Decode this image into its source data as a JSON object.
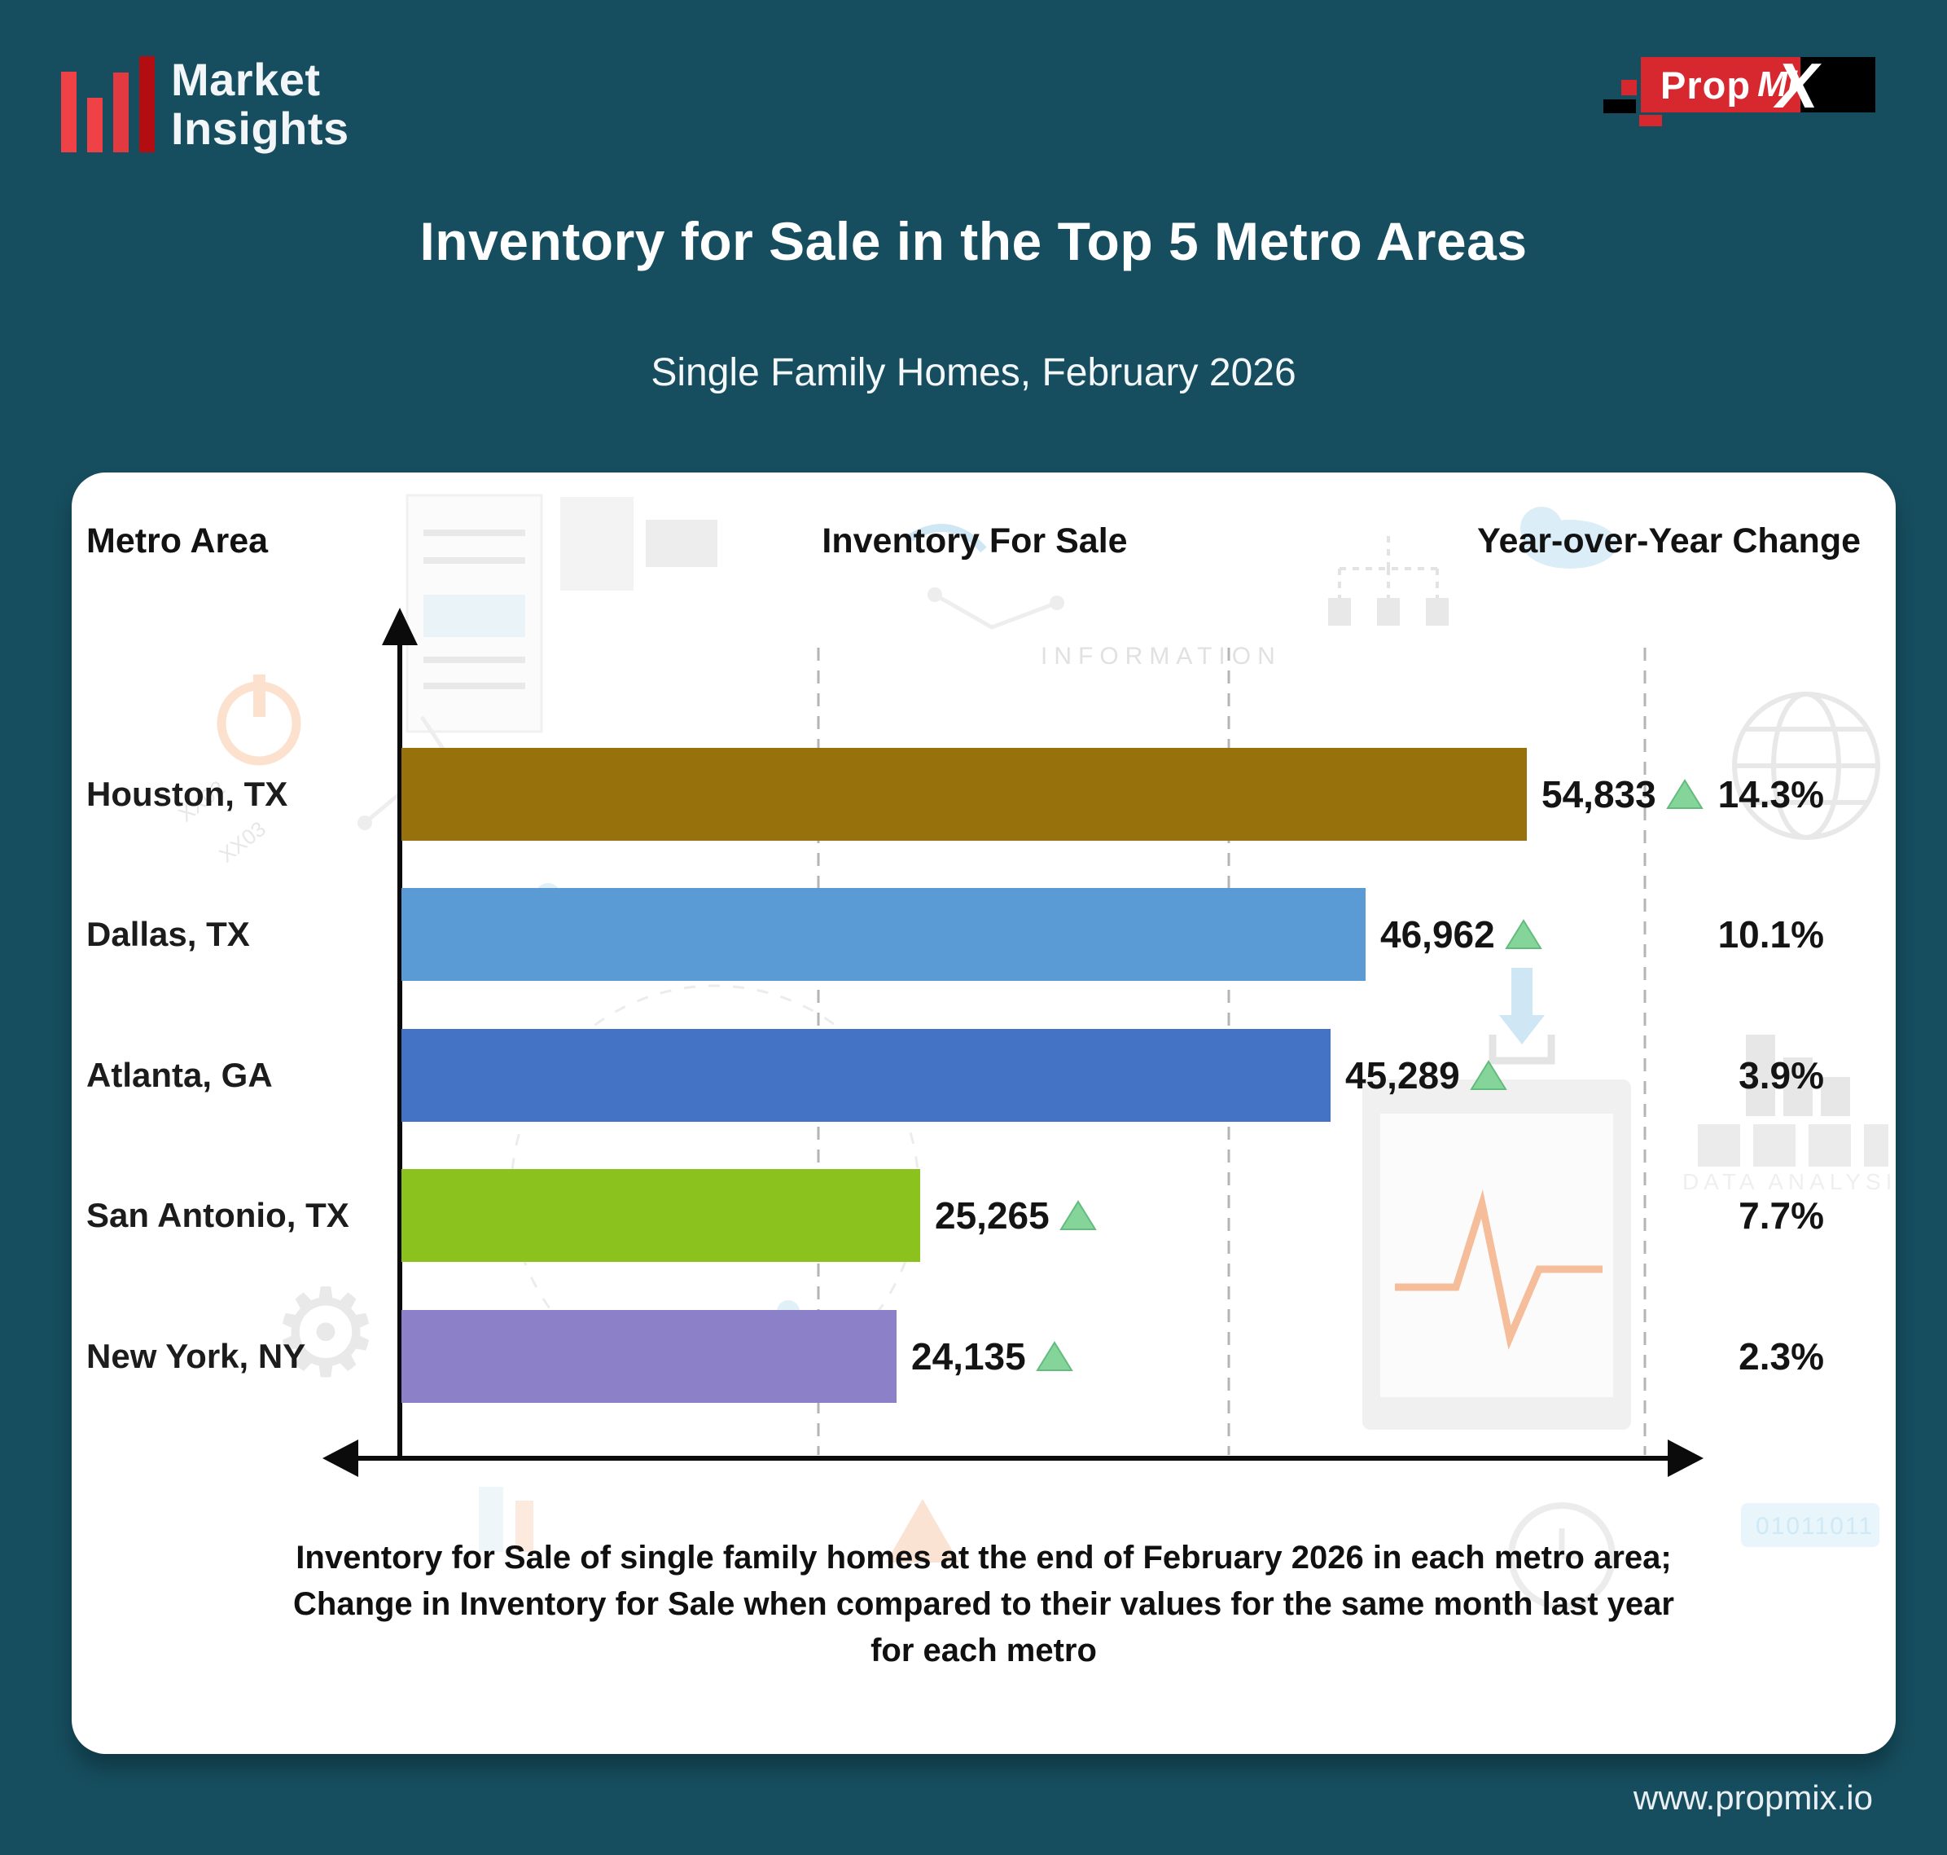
{
  "brand": {
    "logo_line1": "Market",
    "logo_line2": "Insights",
    "propmix_prop": "Prop",
    "propmix_mi": "Mi",
    "propmix_x": "X"
  },
  "header": {
    "title": "Inventory for Sale in the Top 5 Metro Areas",
    "subtitle": "Single Family Homes, February 2026"
  },
  "columns": {
    "metro": "Metro Area",
    "inventory": "Inventory For Sale",
    "yoy": "Year-over-Year Change"
  },
  "chart_data": {
    "type": "bar",
    "orientation": "horizontal",
    "title": "Inventory for Sale in the Top 5 Metro Areas",
    "subtitle": "Single Family Homes, February 2026",
    "categories": [
      "Houston, TX",
      "Dallas, TX",
      "Atlanta, GA",
      "San Antonio, TX",
      "New York, NY"
    ],
    "series": [
      {
        "name": "Inventory For Sale",
        "values": [
          54833,
          46962,
          45289,
          25265,
          24135
        ],
        "labels": [
          "54,833",
          "46,962",
          "45,289",
          "25,265",
          "24,135"
        ]
      },
      {
        "name": "Year-over-Year Change",
        "unit": "%",
        "values": [
          14.3,
          10.1,
          3.9,
          7.7,
          2.3
        ],
        "labels": [
          "14.3%",
          "10.1%",
          "3.9%",
          "7.7%",
          "2.3%"
        ],
        "direction": [
          "up",
          "up",
          "up",
          "up",
          "up"
        ]
      }
    ],
    "bar_colors": [
      "#97710B",
      "#5B9BD5",
      "#4472C4",
      "#8CC21D",
      "#8C80C9"
    ],
    "xlim": [
      0,
      60000
    ],
    "gridline_values": [
      20000,
      40000,
      60000
    ],
    "grid": "vertical-dashed",
    "legend_position": "none"
  },
  "caption": {
    "line1": "Inventory for Sale of single family homes at the end of February 2026 in each metro area;",
    "line2": "Change in Inventory for Sale when compared to their values for the same month last year",
    "line3": "for each metro"
  },
  "watermark": {
    "information": "INFORMATION",
    "data_analysis": "DATA ANALYSIS",
    "tag1": "XX02",
    "tag2": "XX03",
    "digits": "01011011"
  },
  "footer": {
    "website": "www.propmix.io"
  },
  "colors": {
    "background": "#164E5F",
    "card": "#FFFFFF",
    "brand_red": "#D7282F",
    "brand_dark_red": "#B30D12",
    "triangle_green": "#85D59B",
    "triangle_green_border": "#63BB7E",
    "axis_black": "#0B0B0B",
    "gridline_gray": "#B5B5B5"
  }
}
